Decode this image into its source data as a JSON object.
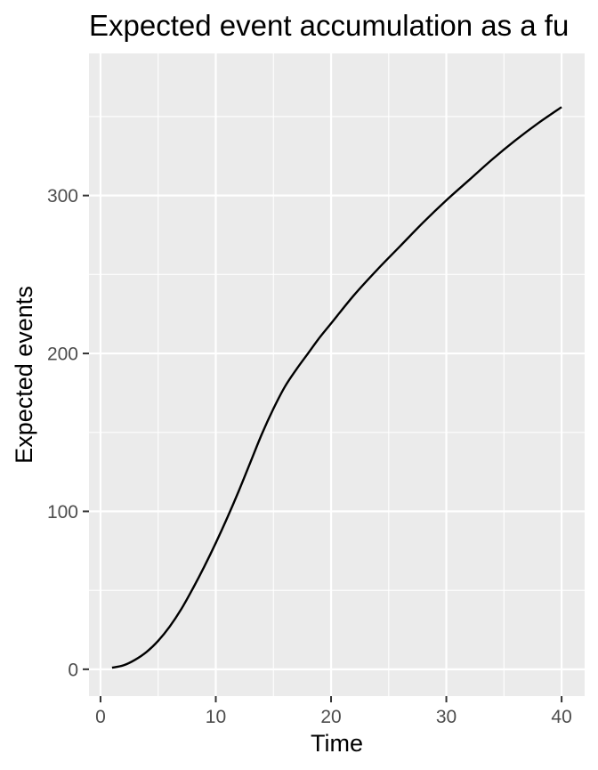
{
  "chart_data": {
    "type": "line",
    "title": "Expected event accumulation as a fu",
    "xlabel": "Time",
    "ylabel": "Expected events",
    "xlim": [
      -1,
      42
    ],
    "ylim": [
      -17,
      390
    ],
    "x_ticks": [
      0,
      10,
      20,
      30,
      40
    ],
    "y_ticks": [
      0,
      100,
      200,
      300
    ],
    "x_tick_labels": [
      "0",
      "10",
      "20",
      "30",
      "40"
    ],
    "y_tick_labels": [
      "0",
      "100",
      "200",
      "300"
    ],
    "grid": true,
    "legend": "none",
    "line_color": "#000000",
    "panel_background": "#ebebeb",
    "series": [
      {
        "x": [
          1,
          2,
          3,
          4,
          5,
          6,
          7,
          8,
          9,
          10,
          11,
          12,
          13,
          14,
          15,
          16,
          17,
          18,
          19,
          20,
          22,
          24,
          26,
          28,
          30,
          32,
          34,
          36,
          38,
          40
        ],
        "y": [
          1,
          2.5,
          6,
          11,
          18,
          27,
          38,
          51,
          65,
          80,
          96,
          113,
          131,
          149,
          165,
          179,
          190,
          200,
          210,
          219,
          237,
          253,
          268,
          283,
          297,
          310,
          323,
          335,
          346,
          356
        ]
      }
    ]
  }
}
